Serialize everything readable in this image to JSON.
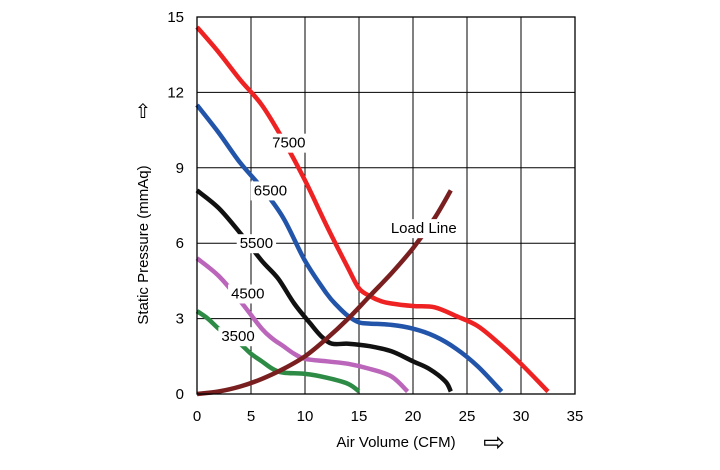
{
  "chart_data": {
    "type": "line",
    "title": "",
    "xlabel": "Air Volume (CFM)",
    "ylabel": "Static Pressure (mmAq)",
    "xlim": [
      0,
      35
    ],
    "ylim": [
      0,
      15
    ],
    "xticks": [
      0,
      5,
      10,
      15,
      20,
      25,
      30,
      35
    ],
    "yticks": [
      0,
      3,
      6,
      9,
      12,
      15
    ],
    "grid": true,
    "legend": "none",
    "series": [
      {
        "name": "7500",
        "color": "#ee2222",
        "x": [
          0,
          2,
          4,
          6,
          8,
          10,
          12,
          14,
          15,
          16,
          17,
          18,
          20,
          22,
          24,
          26,
          28,
          30,
          32.5
        ],
        "y": [
          14.6,
          13.6,
          12.5,
          11.5,
          10.1,
          8.5,
          6.7,
          5.0,
          4.2,
          3.9,
          3.7,
          3.6,
          3.5,
          3.45,
          3.1,
          2.7,
          2.0,
          1.2,
          0.1
        ]
      },
      {
        "name": "6500",
        "color": "#2255aa",
        "x": [
          0,
          2,
          4,
          6,
          8,
          10,
          12,
          13,
          14,
          15,
          16,
          18,
          20,
          22,
          24,
          26,
          28.2
        ],
        "y": [
          11.5,
          10.4,
          9.2,
          8.2,
          7.0,
          5.3,
          4.0,
          3.5,
          3.1,
          2.85,
          2.8,
          2.75,
          2.6,
          2.3,
          1.8,
          1.1,
          0.1
        ]
      },
      {
        "name": "5500",
        "color": "#111111",
        "x": [
          0,
          2,
          4,
          6,
          7.5,
          9,
          10.5,
          11.5,
          12.5,
          14,
          16,
          18,
          20,
          21.5,
          23,
          23.5
        ],
        "y": [
          8.1,
          7.4,
          6.4,
          5.3,
          4.6,
          3.6,
          2.8,
          2.3,
          2.0,
          2.0,
          1.9,
          1.7,
          1.3,
          1.0,
          0.5,
          0.1
        ]
      },
      {
        "name": "4500",
        "color": "#bb66bb",
        "x": [
          0,
          2,
          4,
          6,
          7,
          8,
          9,
          10,
          12,
          14,
          16,
          18,
          19.5
        ],
        "y": [
          5.4,
          4.7,
          3.7,
          2.6,
          2.2,
          1.9,
          1.6,
          1.4,
          1.3,
          1.2,
          1.0,
          0.7,
          0.1
        ]
      },
      {
        "name": "3500",
        "color": "#2e8b45",
        "x": [
          0,
          1,
          2,
          3,
          4,
          5,
          6,
          7,
          8,
          10,
          12,
          14,
          15
        ],
        "y": [
          3.3,
          3.0,
          2.6,
          2.3,
          2.0,
          1.6,
          1.3,
          1.0,
          0.85,
          0.8,
          0.65,
          0.4,
          0.1
        ]
      },
      {
        "name": "Load Line",
        "color": "#7a1f1f",
        "x": [
          0,
          2,
          4,
          6,
          8,
          10,
          12,
          14,
          16,
          18,
          20,
          22,
          23.5
        ],
        "y": [
          0.0,
          0.1,
          0.3,
          0.6,
          1.0,
          1.5,
          2.2,
          3.0,
          3.9,
          4.8,
          5.8,
          7.0,
          8.1
        ]
      }
    ],
    "annotations": [
      {
        "text": "7500",
        "x": 8.5,
        "y": 10.0
      },
      {
        "text": "6500",
        "x": 6.8,
        "y": 8.1
      },
      {
        "text": "5500",
        "x": 5.5,
        "y": 6.0
      },
      {
        "text": "4500",
        "x": 4.7,
        "y": 4.0
      },
      {
        "text": "3500",
        "x": 3.8,
        "y": 2.3
      },
      {
        "text": "Load Line",
        "x": 21.0,
        "y": 6.6
      }
    ]
  },
  "arrow_glyphs": {
    "up": "⇧",
    "right": "⇨"
  }
}
